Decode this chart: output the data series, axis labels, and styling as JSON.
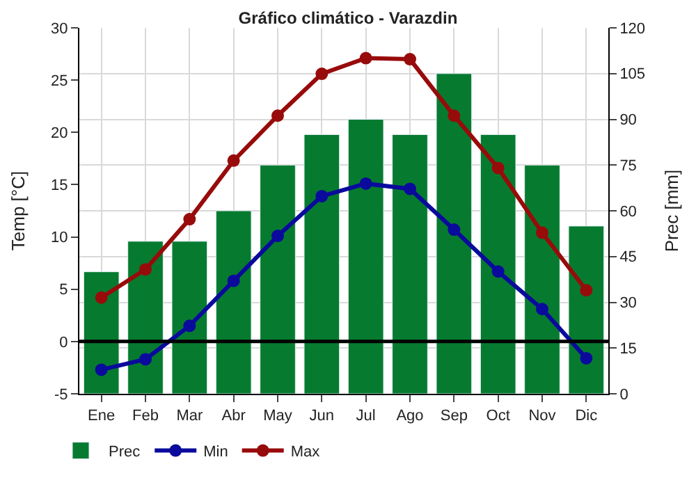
{
  "chart_data": {
    "type": "bar",
    "title": "Gráfico climático - Varazdin",
    "ylabel": "Temp [°C]",
    "y2label": "Prec [mm]",
    "categories": [
      "Ene",
      "Feb",
      "Mar",
      "Abr",
      "May",
      "Jun",
      "Jul",
      "Ago",
      "Sep",
      "Oct",
      "Nov",
      "Dic"
    ],
    "series": [
      {
        "name": "Prec",
        "axis": "y2",
        "color": "#067b2f",
        "values": [
          40,
          50,
          50,
          60,
          75,
          85,
          90,
          85,
          105,
          85,
          75,
          55
        ]
      },
      {
        "name": "Min",
        "type": "line",
        "color": "#0a0a9c",
        "values": [
          -2.7,
          -1.7,
          1.5,
          5.8,
          10.1,
          13.9,
          15.1,
          14.6,
          10.7,
          6.7,
          3.1,
          -1.6
        ]
      },
      {
        "name": "Max",
        "type": "line",
        "color": "#980b0b",
        "values": [
          4.2,
          6.9,
          11.7,
          17.3,
          21.6,
          25.6,
          27.1,
          27.0,
          21.6,
          16.6,
          10.4,
          4.9
        ]
      }
    ],
    "ylim": [
      -5,
      30
    ],
    "yticks": [
      -5,
      0,
      5,
      10,
      15,
      20,
      25,
      30
    ],
    "y2lim": [
      0,
      120
    ],
    "y2ticks": [
      0,
      15,
      30,
      45,
      60,
      75,
      90,
      105,
      120
    ],
    "ref_lines": [
      {
        "axis": "y",
        "value": 0,
        "color": "#000000"
      }
    ],
    "grid": true,
    "legend": "bottom",
    "marker": "circle",
    "line_style": "solid"
  }
}
